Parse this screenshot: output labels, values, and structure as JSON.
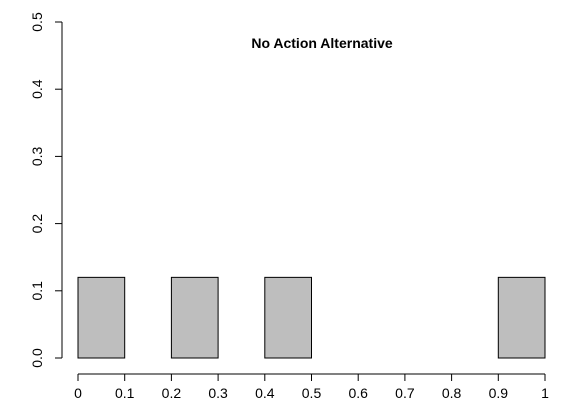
{
  "chart_data": {
    "type": "bar",
    "title": "No Action Alternative",
    "xlabel": "",
    "ylabel": "",
    "xlim": [
      0,
      1
    ],
    "ylim": [
      0,
      0.5
    ],
    "bin_width": 0.1,
    "x_ticks": [
      "0",
      "0.1",
      "0.2",
      "0.3",
      "0.4",
      "0.5",
      "0.6",
      "0.7",
      "0.8",
      "0.9",
      "1"
    ],
    "y_ticks": [
      "0.0",
      "0.1",
      "0.2",
      "0.3",
      "0.4",
      "0.5"
    ],
    "bars": [
      {
        "x0": 0.0,
        "x1": 0.1,
        "value": 0.12
      },
      {
        "x0": 0.2,
        "x1": 0.3,
        "value": 0.12
      },
      {
        "x0": 0.4,
        "x1": 0.5,
        "value": 0.12
      },
      {
        "x0": 0.9,
        "x1": 1.0,
        "value": 0.12
      }
    ],
    "grid": false,
    "legend": "none",
    "colors": {
      "bar_fill": "#bebebe",
      "bar_stroke": "#000000"
    }
  }
}
